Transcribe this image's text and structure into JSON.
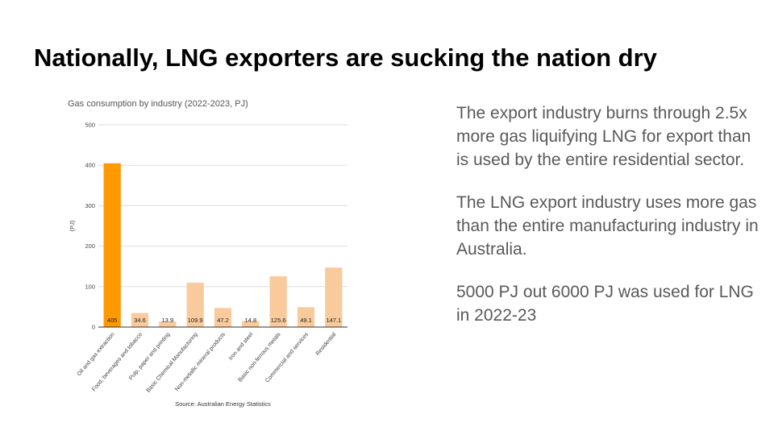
{
  "slide": {
    "title": "Nationally, LNG exporters are sucking the nation dry",
    "paragraphs": [
      "The export industry burns through 2.5x more gas liquifying LNG for export than is used by the entire residential sector.",
      "The LNG export industry uses more gas than the entire manufacturing industry in Australia.",
      "5000 PJ out 6000 PJ was used for LNG in 2022-23"
    ]
  },
  "chart_data": {
    "type": "bar",
    "title": "Gas consumption by industry (2022-2023, PJ)",
    "xlabel": "",
    "ylabel": "(PJ)",
    "source": "Source: Australian Energy Statistics",
    "categories": [
      "Oil and gas extraction",
      "Food, beverages and tobacco",
      "Pulp, paper and printing",
      "Basic Chemical Manufacturing",
      "Non-metallic mineral products",
      "Iron and steel",
      "Basic non-ferrous metals",
      "Commercial and services",
      "Residential"
    ],
    "values": [
      405,
      34.6,
      13.9,
      109.9,
      47.2,
      14.8,
      125.6,
      49.1,
      147.1
    ],
    "value_labels": [
      "405",
      "34.6",
      "13.9",
      "109.9",
      "47.2",
      "14.8",
      "125.6",
      "49.1",
      "147.1"
    ],
    "ylim": [
      0,
      500
    ],
    "yticks": [
      0,
      100,
      200,
      300,
      400,
      500
    ],
    "ytick_labels": [
      "0",
      "100",
      "200",
      "300",
      "400",
      "500"
    ],
    "grid": true,
    "legend": "none",
    "colors": {
      "highlight": "#ff9900",
      "bar": "#f9cb9c",
      "grid": "#dddddd",
      "axis": "#333333",
      "text": "#444444"
    },
    "highlight_index": 0
  }
}
